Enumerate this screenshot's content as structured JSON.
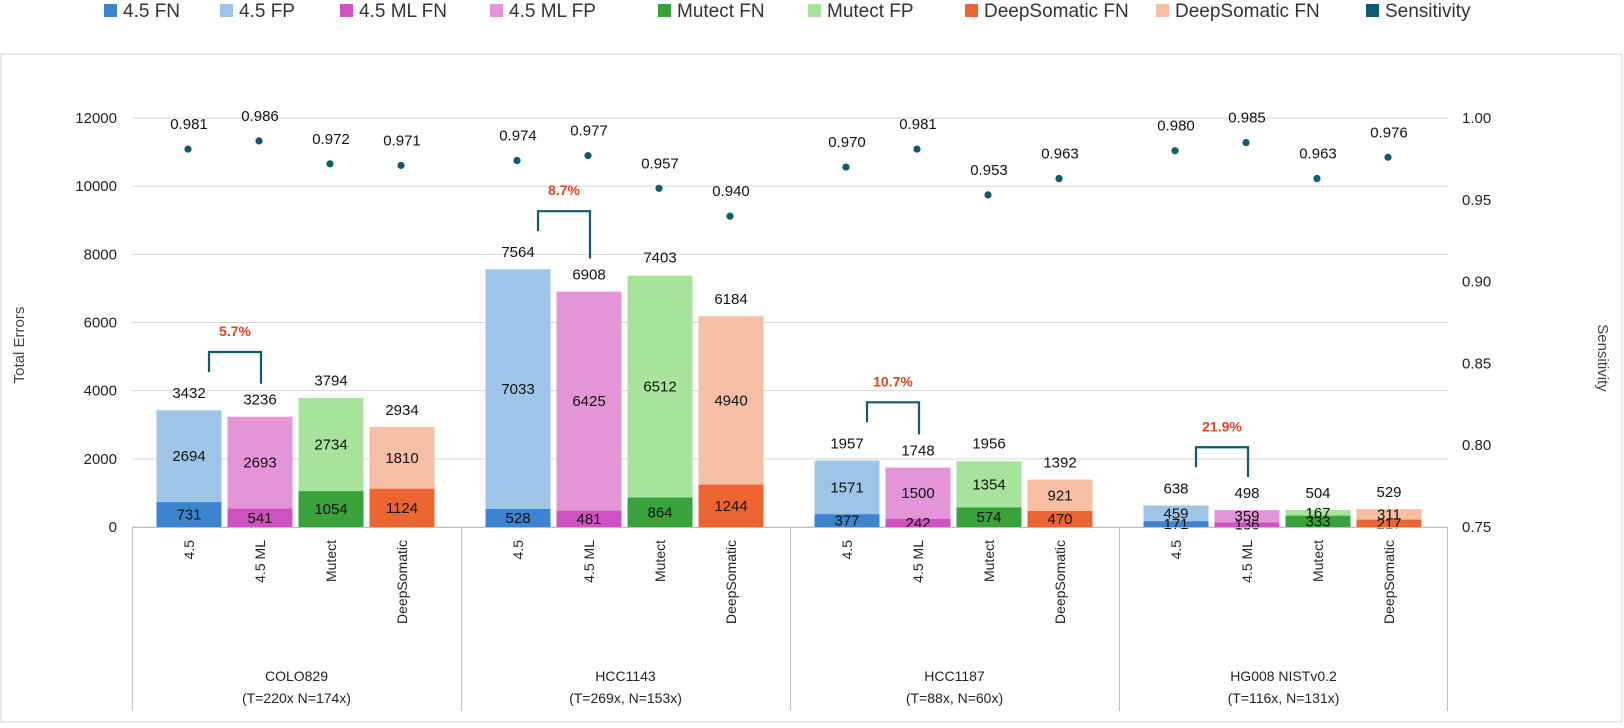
{
  "chart_data": {
    "type": "bar",
    "subtype": "stacked bar with sensitivity scatter on secondary axis",
    "legend": [
      {
        "name": "4.5 FN",
        "color": "#3c84d0"
      },
      {
        "name": "4.5 FP",
        "color": "#9ec5e8"
      },
      {
        "name": "4.5 ML FN",
        "color": "#d052c2"
      },
      {
        "name": "4.5 ML FP",
        "color": "#e495d8"
      },
      {
        "name": "Mutect FN",
        "color": "#37a33a"
      },
      {
        "name": "Mutect FP",
        "color": "#a7e39b"
      },
      {
        "name": "DeepSomatic FN",
        "color": "#ec6530"
      },
      {
        "name": "DeepSomatic FN",
        "color": "#f6bea4"
      },
      {
        "name": "Sensitivity",
        "color": "#0d5a73"
      }
    ],
    "legend_position": "top",
    "ylabel": "Total Errors",
    "y2label": "Sensitivity",
    "ylim": [
      0,
      12000
    ],
    "yticks": [
      0,
      2000,
      4000,
      6000,
      8000,
      10000,
      12000
    ],
    "y2lim": [
      0.75,
      1.0
    ],
    "y2ticks": [
      "0.75",
      "0.80",
      "0.85",
      "0.90",
      "0.95",
      "1.00"
    ],
    "grid": true,
    "groups": [
      {
        "name": "COLO829",
        "subtitle": "(T=220x N=174x)",
        "improvement": "5.7%",
        "bars": [
          {
            "label": "4.5",
            "fn": 731,
            "fp": 2694,
            "total": 3432,
            "sensitivity": "0.981"
          },
          {
            "label": "4.5 ML",
            "fn": 541,
            "fp": 2693,
            "total": 3236,
            "sensitivity": "0.986"
          },
          {
            "label": "Mutect",
            "fn": 1054,
            "fp": 2734,
            "total": 3794,
            "sensitivity": "0.972"
          },
          {
            "label": "DeepSomatic",
            "fn": 1124,
            "fp": 1810,
            "total": 2934,
            "sensitivity": "0.971"
          }
        ]
      },
      {
        "name": "HCC1143",
        "subtitle": "(T=269x, N=153x)",
        "improvement": "8.7%",
        "bars": [
          {
            "label": "4.5",
            "fn": 528,
            "fp": 7033,
            "total": 7564,
            "sensitivity": "0.974"
          },
          {
            "label": "4.5 ML",
            "fn": 481,
            "fp": 6425,
            "total": 6908,
            "sensitivity": "0.977"
          },
          {
            "label": "Mutect",
            "fn": 864,
            "fp": 6512,
            "total": 7403,
            "sensitivity": "0.957"
          },
          {
            "label": "DeepSomatic",
            "fn": 1244,
            "fp": 4940,
            "total": 6184,
            "sensitivity": "0.940"
          }
        ]
      },
      {
        "name": "HCC1187",
        "subtitle": "(T=88x, N=60x)",
        "improvement": "10.7%",
        "bars": [
          {
            "label": "4.5",
            "fn": 377,
            "fp": 1571,
            "total": 1957,
            "sensitivity": "0.970"
          },
          {
            "label": "4.5 ML",
            "fn": 242,
            "fp": 1500,
            "total": 1748,
            "sensitivity": "0.981"
          },
          {
            "label": "Mutect",
            "fn": 574,
            "fp": 1354,
            "total": 1956,
            "sensitivity": "0.953"
          },
          {
            "label": "DeepSomatic",
            "fn": 470,
            "fp": 921,
            "total": 1392,
            "sensitivity": "0.963"
          }
        ]
      },
      {
        "name": "HG008 NISTv0.2",
        "subtitle": "(T=116x, N=131x)",
        "improvement": "21.9%",
        "bars": [
          {
            "label": "4.5",
            "fn": 171,
            "fp": 459,
            "total": 638,
            "sensitivity": "0.980"
          },
          {
            "label": "4.5 ML",
            "fn": 136,
            "fp": 359,
            "total": 498,
            "sensitivity": "0.985"
          },
          {
            "label": "Mutect",
            "fn": 333,
            "fp": 167,
            "total": 504,
            "sensitivity": "0.963"
          },
          {
            "label": "DeepSomatic",
            "fn": 217,
            "fp": 311,
            "total": 529,
            "sensitivity": "0.976"
          }
        ]
      }
    ]
  }
}
